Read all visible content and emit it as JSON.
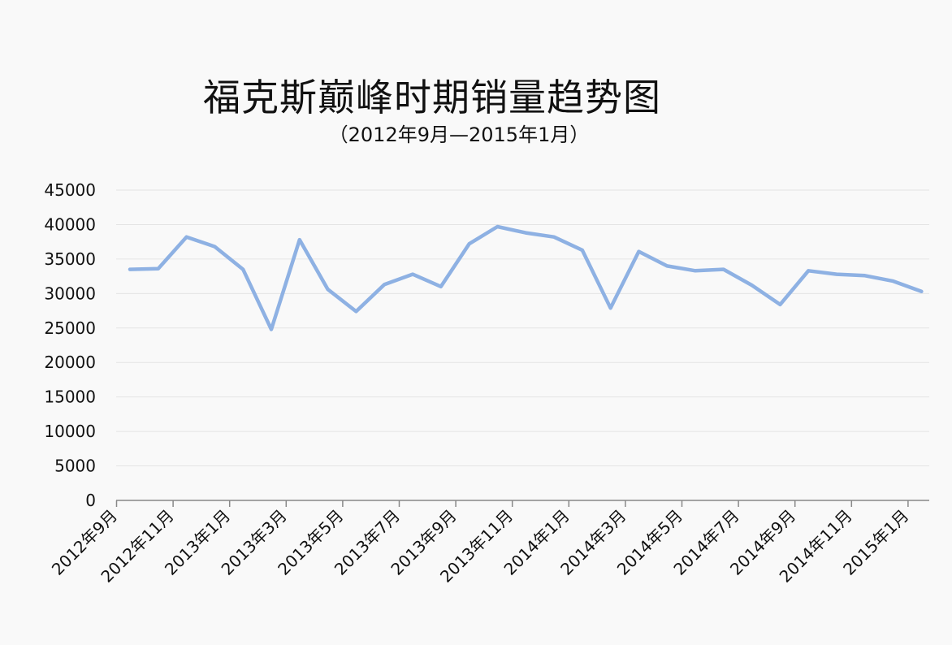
{
  "chart_data": {
    "type": "line",
    "title": "福克斯巅峰时期销量趋势图",
    "subtitle": "（2012年9月—2015年1月）",
    "xlabel": "",
    "ylabel": "",
    "ylim": [
      0,
      45000
    ],
    "yticks": [
      0,
      5000,
      10000,
      15000,
      20000,
      25000,
      30000,
      35000,
      40000,
      45000
    ],
    "grid": true,
    "legend": "none",
    "categories": [
      "2012年9月",
      "2012年10月",
      "2012年11月",
      "2012年12月",
      "2013年1月",
      "2013年2月",
      "2013年3月",
      "2013年4月",
      "2013年5月",
      "2013年6月",
      "2013年7月",
      "2013年8月",
      "2013年9月",
      "2013年10月",
      "2013年11月",
      "2013年12月",
      "2014年1月",
      "2014年2月",
      "2014年3月",
      "2014年4月",
      "2014年5月",
      "2014年6月",
      "2014年7月",
      "2014年8月",
      "2014年9月",
      "2014年10月",
      "2014年11月",
      "2014年12月",
      "2015年1月"
    ],
    "tick_labels": [
      "2012年9月",
      "2012年11月",
      "2013年1月",
      "2013年3月",
      "2013年5月",
      "2013年7月",
      "2013年9月",
      "2013年11月",
      "2014年1月",
      "2014年3月",
      "2014年5月",
      "2014年7月",
      "2014年9月",
      "2014年11月",
      "2015年1月"
    ],
    "series": [
      {
        "values": [
          33500,
          33600,
          38200,
          36800,
          33500,
          24800,
          37800,
          30600,
          27400,
          31300,
          32800,
          31000,
          37200,
          39700,
          38800,
          38200,
          36300,
          27900,
          36100,
          34000,
          33300,
          33500,
          31200,
          28400,
          33300,
          32800,
          32600,
          31800,
          30300
        ]
      }
    ],
    "colors": {
      "line": "#8eb1e3",
      "grid": "#e4e4e4",
      "axis": "#888888"
    }
  }
}
